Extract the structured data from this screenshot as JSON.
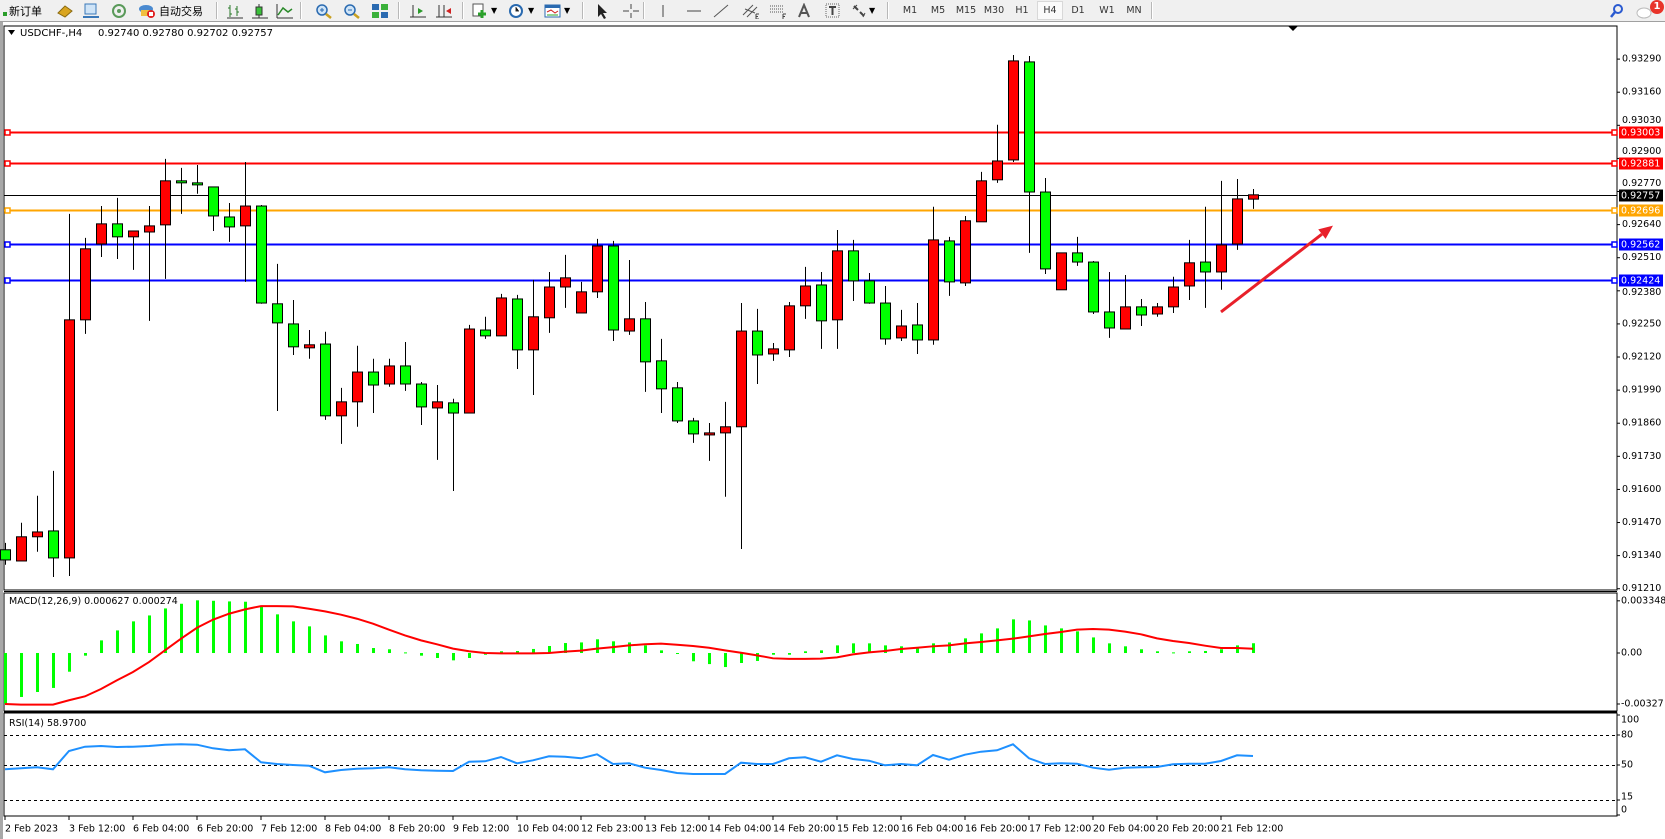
{
  "toolbar": {
    "new_order_label": "新订单",
    "auto_trading_label": "自动交易",
    "timeframes": [
      "M1",
      "M5",
      "M15",
      "M30",
      "H1",
      "H4",
      "D1",
      "W1",
      "MN"
    ],
    "active_timeframe": "H4",
    "notification_count": "1"
  },
  "chart_header": {
    "symbol": "USDCHF-,H4",
    "ohlc": "0.92740 0.92780 0.92702 0.92757"
  },
  "colors": {
    "bull_candle": "#ff0000",
    "bear_candle": "#00ff00",
    "macd_histogram": "#00ff00",
    "macd_signal": "#ff0000",
    "rsi_line": "#1e90ff",
    "arrow": "#e8202a"
  },
  "chart_data": [
    {
      "type": "candlestick",
      "ylim": [
        0.91205,
        0.9342
      ],
      "y_ticks": [
        "0.93290",
        "0.93160",
        "0.93030",
        "0.92900",
        "0.92770",
        "0.92640",
        "0.92510",
        "0.92380",
        "0.92250",
        "0.92120",
        "0.91990",
        "0.91860",
        "0.91730",
        "0.91600",
        "0.91470",
        "0.91340",
        "0.91210"
      ],
      "x_labels": [
        {
          "i": 0,
          "label": "2 Feb 2023"
        },
        {
          "i": 4,
          "label": "3 Feb 12:00"
        },
        {
          "i": 8,
          "label": "6 Feb 04:00"
        },
        {
          "i": 12,
          "label": "6 Feb 20:00"
        },
        {
          "i": 16,
          "label": "7 Feb 12:00"
        },
        {
          "i": 20,
          "label": "8 Feb 04:00"
        },
        {
          "i": 24,
          "label": "8 Feb 20:00"
        },
        {
          "i": 28,
          "label": "9 Feb 12:00"
        },
        {
          "i": 32,
          "label": "10 Feb 04:00"
        },
        {
          "i": 36,
          "label": "12 Feb 23:00"
        },
        {
          "i": 40,
          "label": "13 Feb 12:00"
        },
        {
          "i": 44,
          "label": "14 Feb 04:00"
        },
        {
          "i": 48,
          "label": "14 Feb 20:00"
        },
        {
          "i": 52,
          "label": "15 Feb 12:00"
        },
        {
          "i": 56,
          "label": "16 Feb 04:00"
        },
        {
          "i": 60,
          "label": "16 Feb 20:00"
        },
        {
          "i": 64,
          "label": "17 Feb 12:00"
        },
        {
          "i": 68,
          "label": "20 Feb 04:00"
        },
        {
          "i": 72,
          "label": "20 Feb 20:00"
        },
        {
          "i": 76,
          "label": "21 Feb 12:00"
        }
      ],
      "ohlc_columns": [
        "open",
        "high",
        "low",
        "close"
      ],
      "candles": [
        [
          0.91363,
          0.9139,
          0.91304,
          0.91323
        ],
        [
          0.91319,
          0.91469,
          0.91319,
          0.91414
        ],
        [
          0.91414,
          0.91575,
          0.91355,
          0.91433
        ],
        [
          0.91437,
          0.91673,
          0.91256,
          0.91331
        ],
        [
          0.91331,
          0.92682,
          0.9126,
          0.92266
        ],
        [
          0.92266,
          0.92588,
          0.92211,
          0.92545
        ],
        [
          0.92564,
          0.92713,
          0.92513,
          0.92643
        ],
        [
          0.92643,
          0.92745,
          0.92505,
          0.92592
        ],
        [
          0.92592,
          0.92615,
          0.92462,
          0.92615
        ],
        [
          0.92611,
          0.92713,
          0.92262,
          0.92635
        ],
        [
          0.92639,
          0.92898,
          0.92427,
          0.92812
        ],
        [
          0.92812,
          0.92863,
          0.92682,
          0.92804
        ],
        [
          0.92804,
          0.92874,
          0.92761,
          0.92796
        ],
        [
          0.92788,
          0.92788,
          0.92615,
          0.92674
        ],
        [
          0.9267,
          0.92725,
          0.92572,
          0.92631
        ],
        [
          0.92635,
          0.92886,
          0.92415,
          0.92713
        ],
        [
          0.92713,
          0.92717,
          0.92329,
          0.92332
        ],
        [
          0.92329,
          0.92486,
          0.91908,
          0.92254
        ],
        [
          0.9225,
          0.92344,
          0.92128,
          0.9216
        ],
        [
          0.92156,
          0.92226,
          0.92113,
          0.92168
        ],
        [
          0.92171,
          0.92219,
          0.91873,
          0.91889
        ],
        [
          0.91889,
          0.91999,
          0.91779,
          0.91944
        ],
        [
          0.91944,
          0.92164,
          0.91846,
          0.92061
        ],
        [
          0.92061,
          0.92113,
          0.919,
          0.9201
        ],
        [
          0.92014,
          0.92113,
          0.92003,
          0.92085
        ],
        [
          0.92085,
          0.92179,
          0.91987,
          0.92014
        ],
        [
          0.92014,
          0.92022,
          0.91853,
          0.91924
        ],
        [
          0.9192,
          0.9201,
          0.91716,
          0.91944
        ],
        [
          0.9194,
          0.91956,
          0.91594,
          0.919
        ],
        [
          0.919,
          0.92246,
          0.919,
          0.9223
        ],
        [
          0.92226,
          0.92278,
          0.92191,
          0.92203
        ],
        [
          0.92203,
          0.92368,
          0.92203,
          0.92352
        ],
        [
          0.92348,
          0.92364,
          0.92073,
          0.92148
        ],
        [
          0.92148,
          0.92423,
          0.91971,
          0.92278
        ],
        [
          0.92274,
          0.92454,
          0.92215,
          0.92395
        ],
        [
          0.92395,
          0.92521,
          0.92313,
          0.92431
        ],
        [
          0.92293,
          0.92415,
          0.92293,
          0.92376
        ],
        [
          0.92376,
          0.92584,
          0.92352,
          0.92556
        ],
        [
          0.92556,
          0.92576,
          0.92183,
          0.92226
        ],
        [
          0.92222,
          0.92501,
          0.92207,
          0.9227
        ],
        [
          0.9227,
          0.92336,
          0.91983,
          0.92101
        ],
        [
          0.92105,
          0.92191,
          0.919,
          0.91995
        ],
        [
          0.91999,
          0.92022,
          0.91861,
          0.91869
        ],
        [
          0.91869,
          0.91881,
          0.91783,
          0.91818
        ],
        [
          0.91814,
          0.91861,
          0.91712,
          0.91822
        ],
        [
          0.91822,
          0.91944,
          0.91571,
          0.91846
        ],
        [
          0.91846,
          0.92332,
          0.91366,
          0.92222
        ],
        [
          0.92222,
          0.92309,
          0.92014,
          0.92128
        ],
        [
          0.92132,
          0.92175,
          0.92105,
          0.92152
        ],
        [
          0.92148,
          0.92336,
          0.9212,
          0.92321
        ],
        [
          0.92321,
          0.92474,
          0.9227,
          0.92399
        ],
        [
          0.92403,
          0.92454,
          0.92152,
          0.92262
        ],
        [
          0.92266,
          0.92619,
          0.92152,
          0.92537
        ],
        [
          0.92537,
          0.9258,
          0.9234,
          0.92419
        ],
        [
          0.92419,
          0.9245,
          0.92329,
          0.92332
        ],
        [
          0.92332,
          0.92399,
          0.92168,
          0.92191
        ],
        [
          0.92195,
          0.92305,
          0.92183,
          0.92242
        ],
        [
          0.92246,
          0.92332,
          0.92132,
          0.92187
        ],
        [
          0.92187,
          0.9271,
          0.92168,
          0.9258
        ],
        [
          0.92576,
          0.92592,
          0.9236,
          0.92415
        ],
        [
          0.92411,
          0.92674,
          0.92399,
          0.92655
        ],
        [
          0.92651,
          0.92847,
          0.92651,
          0.92812
        ],
        [
          0.92816,
          0.93032,
          0.92804,
          0.9289
        ],
        [
          0.92894,
          0.93306,
          0.92886,
          0.93283
        ],
        [
          0.93279,
          0.93302,
          0.92529,
          0.92768
        ],
        [
          0.92768,
          0.92823,
          0.92446,
          0.92466
        ],
        [
          0.92384,
          0.92529,
          0.92384,
          0.92529
        ],
        [
          0.92529,
          0.92592,
          0.92478,
          0.92493
        ],
        [
          0.92493,
          0.92497,
          0.92289,
          0.92297
        ],
        [
          0.92297,
          0.92454,
          0.92195,
          0.92234
        ],
        [
          0.9223,
          0.92442,
          0.9223,
          0.92317
        ],
        [
          0.92317,
          0.92348,
          0.92242,
          0.92285
        ],
        [
          0.92289,
          0.92332,
          0.92278,
          0.92317
        ],
        [
          0.92317,
          0.92435,
          0.92293,
          0.92395
        ],
        [
          0.92399,
          0.9258,
          0.92344,
          0.9249
        ],
        [
          0.92493,
          0.9271,
          0.92313,
          0.92454
        ],
        [
          0.92454,
          0.92812,
          0.92384,
          0.9256
        ],
        [
          0.92564,
          0.92819,
          0.92541,
          0.92741
        ],
        [
          0.9274,
          0.9278,
          0.92702,
          0.92757
        ]
      ],
      "horizontal_lines": [
        {
          "price": 0.93003,
          "label": "0.93003",
          "color": "#ff0000",
          "marker": true
        },
        {
          "price": 0.92881,
          "label": "0.92881",
          "color": "#ff0000",
          "marker": true
        },
        {
          "price": 0.92757,
          "label": "0.92757",
          "color": "#000000",
          "marker": false
        },
        {
          "price": 0.92696,
          "label": "0.92696",
          "color": "#ffa500",
          "marker": true
        },
        {
          "price": 0.92562,
          "label": "0.92562",
          "color": "#0000ff",
          "marker": true
        },
        {
          "price": 0.92424,
          "label": "0.92424",
          "color": "#0000ff",
          "marker": true
        }
      ],
      "arrow": {
        "from": [
          76,
          0.92297
        ],
        "to": [
          83,
          0.92636
        ]
      }
    },
    {
      "type": "bar",
      "title": "MACD(12,26,9) 0.000627 0.000274",
      "ylim": [
        -0.00372,
        0.00385
      ],
      "y_ticks": [
        {
          "v": 0.003348,
          "label": "0.003348"
        },
        {
          "v": 0,
          "label": "0.00"
        },
        {
          "v": -0.00327,
          "label": "-0.00327"
        }
      ],
      "histogram": [
        -0.00325,
        -0.00282,
        -0.0025,
        -0.00224,
        -0.0012,
        -0.00017,
        0.00081,
        0.00145,
        0.00203,
        0.00241,
        0.00286,
        0.00316,
        0.00338,
        0.00335,
        0.00331,
        0.00329,
        0.00295,
        0.00248,
        0.00203,
        0.00171,
        0.00113,
        0.00075,
        0.00058,
        0.00032,
        0.00024,
        4e-05,
        -0.00017,
        -0.00032,
        -0.00047,
        -0.00032,
        -0.00011,
        0.00011,
        0.00013,
        0.00026,
        0.00045,
        0.00064,
        0.00068,
        0.00088,
        0.00075,
        0.00068,
        0.00049,
        0.00017,
        -2e-05,
        -0.00053,
        -0.00071,
        -0.0009,
        -0.00064,
        -0.00051,
        -0.00011,
        -0.00011,
        0.00011,
        0.00017,
        0.00049,
        0.00062,
        0.00062,
        0.00049,
        0.00043,
        0.00034,
        0.00062,
        0.00068,
        0.00094,
        0.00126,
        0.00158,
        0.00216,
        0.00209,
        0.00177,
        0.00158,
        0.00139,
        0.001,
        0.00062,
        0.00043,
        0.00024,
        0.00011,
        4e-05,
        0.00011,
        0.00013,
        0.00024,
        0.00049,
        0.000627
      ],
      "signal": [
        -0.00327,
        -0.00331,
        -0.00331,
        -0.00331,
        -0.00303,
        -0.00278,
        -0.00231,
        -0.00175,
        -0.00122,
        -0.00058,
        0.00017,
        0.00092,
        0.00162,
        0.00214,
        0.00252,
        0.0028,
        0.00301,
        0.00301,
        0.00299,
        0.00284,
        0.00267,
        0.00246,
        0.0022,
        0.00188,
        0.0015,
        0.00113,
        0.00081,
        0.00056,
        0.00028,
        0.00011,
        0.0,
        -2e-05,
        -2e-05,
        -2e-05,
        0.0,
        9e-05,
        0.00015,
        0.00028,
        0.00038,
        0.00049,
        0.00056,
        0.0006,
        0.00053,
        0.00045,
        0.00034,
        0.00017,
        2e-05,
        -0.00015,
        -0.00034,
        -0.00038,
        -0.00038,
        -0.00036,
        -0.00028,
        -9e-05,
        4e-05,
        0.00013,
        0.00026,
        0.00034,
        0.00043,
        0.00049,
        0.00062,
        0.00071,
        0.00081,
        0.00092,
        0.00107,
        0.00122,
        0.00135,
        0.0015,
        0.00154,
        0.0015,
        0.00137,
        0.0012,
        0.00094,
        0.00077,
        0.00064,
        0.00047,
        0.00032,
        0.00032,
        0.000274
      ]
    },
    {
      "type": "line",
      "title": "RSI(14) 58.9700",
      "ylim": [
        0,
        100
      ],
      "levels": [
        80,
        50,
        15
      ],
      "y_ticks": [
        "100",
        "80",
        "50",
        "15",
        "0"
      ],
      "values": [
        45.7,
        46.7,
        47.7,
        45.7,
        64.0,
        68.3,
        69.0,
        68.0,
        68.3,
        69.0,
        70.3,
        70.7,
        70.3,
        66.7,
        64.7,
        65.7,
        52.7,
        51.0,
        50.0,
        49.3,
        42.7,
        45.0,
        46.3,
        46.7,
        47.7,
        45.7,
        44.7,
        44.3,
        44.0,
        53.3,
        53.7,
        58.0,
        51.7,
        54.7,
        58.7,
        58.3,
        56.7,
        60.7,
        51.0,
        51.7,
        47.3,
        45.0,
        42.0,
        41.0,
        41.0,
        41.0,
        52.3,
        51.0,
        51.0,
        56.7,
        57.7,
        53.3,
        59.7,
        56.0,
        54.3,
        49.7,
        51.0,
        49.7,
        60.0,
        55.3,
        60.3,
        63.3,
        64.7,
        70.7,
        56.7,
        51.0,
        51.7,
        51.3,
        47.3,
        45.3,
        47.3,
        47.7,
        48.0,
        50.7,
        51.3,
        51.3,
        54.0,
        59.7,
        58.97
      ]
    }
  ]
}
